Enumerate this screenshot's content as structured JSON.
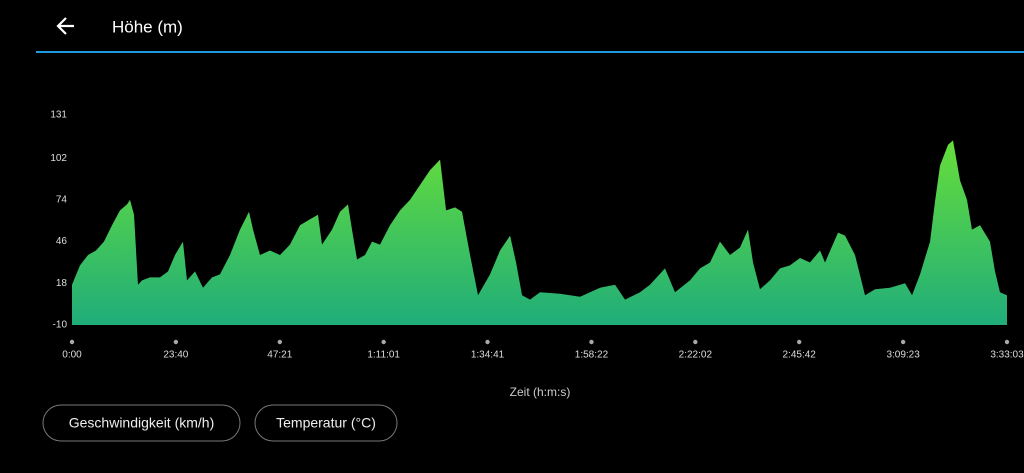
{
  "header": {
    "title": "Höhe (m)"
  },
  "chart_data": {
    "type": "area",
    "x_label": "Zeit (h:m:s)",
    "x": [
      0,
      109,
      219,
      328,
      437,
      547,
      656,
      752,
      793,
      848,
      902,
      957,
      1066,
      1203,
      1313,
      1408,
      1517,
      1572,
      1682,
      1791,
      1914,
      2023,
      2160,
      2297,
      2420,
      2475,
      2570,
      2707,
      2844,
      2980,
      3117,
      3254,
      3363,
      3418,
      3555,
      3664,
      3773,
      3828,
      3897,
      4006,
      4102,
      4211,
      4348,
      4485,
      4621,
      4758,
      4895,
      5032,
      5114,
      5237,
      5332,
      5442,
      5551,
      5715,
      5852,
      5989,
      6071,
      6153,
      6262,
      6399,
      6672,
      6946,
      7219,
      7424,
      7561,
      7766,
      7902,
      8107,
      8244,
      8449,
      8586,
      8723,
      8859,
      8996,
      9133,
      9242,
      9311,
      9406,
      9543,
      9680,
      9816,
      9953,
      10090,
      10227,
      10295,
      10473,
      10569,
      10705,
      10842,
      10979,
      11184,
      11389,
      11485,
      11594,
      11731,
      11799,
      11867,
      11977,
      12045,
      12141,
      12236,
      12304,
      12414,
      12550,
      12619,
      12687,
      12783
    ],
    "values": [
      17,
      30,
      37,
      40,
      46,
      57,
      67,
      71,
      74,
      64,
      17,
      20,
      22,
      22,
      26,
      37,
      46,
      20,
      26,
      15,
      22,
      24,
      37,
      54,
      66,
      54,
      37,
      40,
      37,
      44,
      57,
      61,
      64,
      44,
      54,
      66,
      71,
      54,
      34,
      37,
      46,
      44,
      57,
      67,
      74,
      84,
      94,
      101,
      67,
      69,
      66,
      37,
      10,
      24,
      40,
      50,
      32,
      10,
      7,
      12,
      11,
      9,
      15,
      17,
      7,
      12,
      17,
      28,
      12,
      20,
      28,
      32,
      46,
      37,
      42,
      54,
      32,
      14,
      20,
      28,
      30,
      35,
      32,
      40,
      32,
      52,
      50,
      37,
      10,
      14,
      15,
      18,
      10,
      24,
      46,
      73,
      97,
      111,
      114,
      87,
      74,
      54,
      57,
      46,
      26,
      12,
      10
    ],
    "gradient": [
      "#66de3a",
      "#20ad7a"
    ],
    "xlim": [
      0,
      12783
    ],
    "xticks": [
      {
        "value": 0,
        "label": "0:00"
      },
      {
        "value": 1420,
        "label": "23:40"
      },
      {
        "value": 2841,
        "label": "47:21"
      },
      {
        "value": 4261,
        "label": "1:11:01"
      },
      {
        "value": 5681,
        "label": "1:34:41"
      },
      {
        "value": 7102,
        "label": "1:58:22"
      },
      {
        "value": 8522,
        "label": "2:22:02"
      },
      {
        "value": 9942,
        "label": "2:45:42"
      },
      {
        "value": 11363,
        "label": "3:09:23"
      },
      {
        "value": 12783,
        "label": "3:33:03"
      }
    ],
    "ylim": [
      -10,
      131
    ],
    "yticks": [
      -10,
      18,
      46,
      74,
      102,
      131
    ]
  },
  "buttons": [
    "Geschwindigkeit (km/h)",
    "Temperatur (°C)"
  ]
}
